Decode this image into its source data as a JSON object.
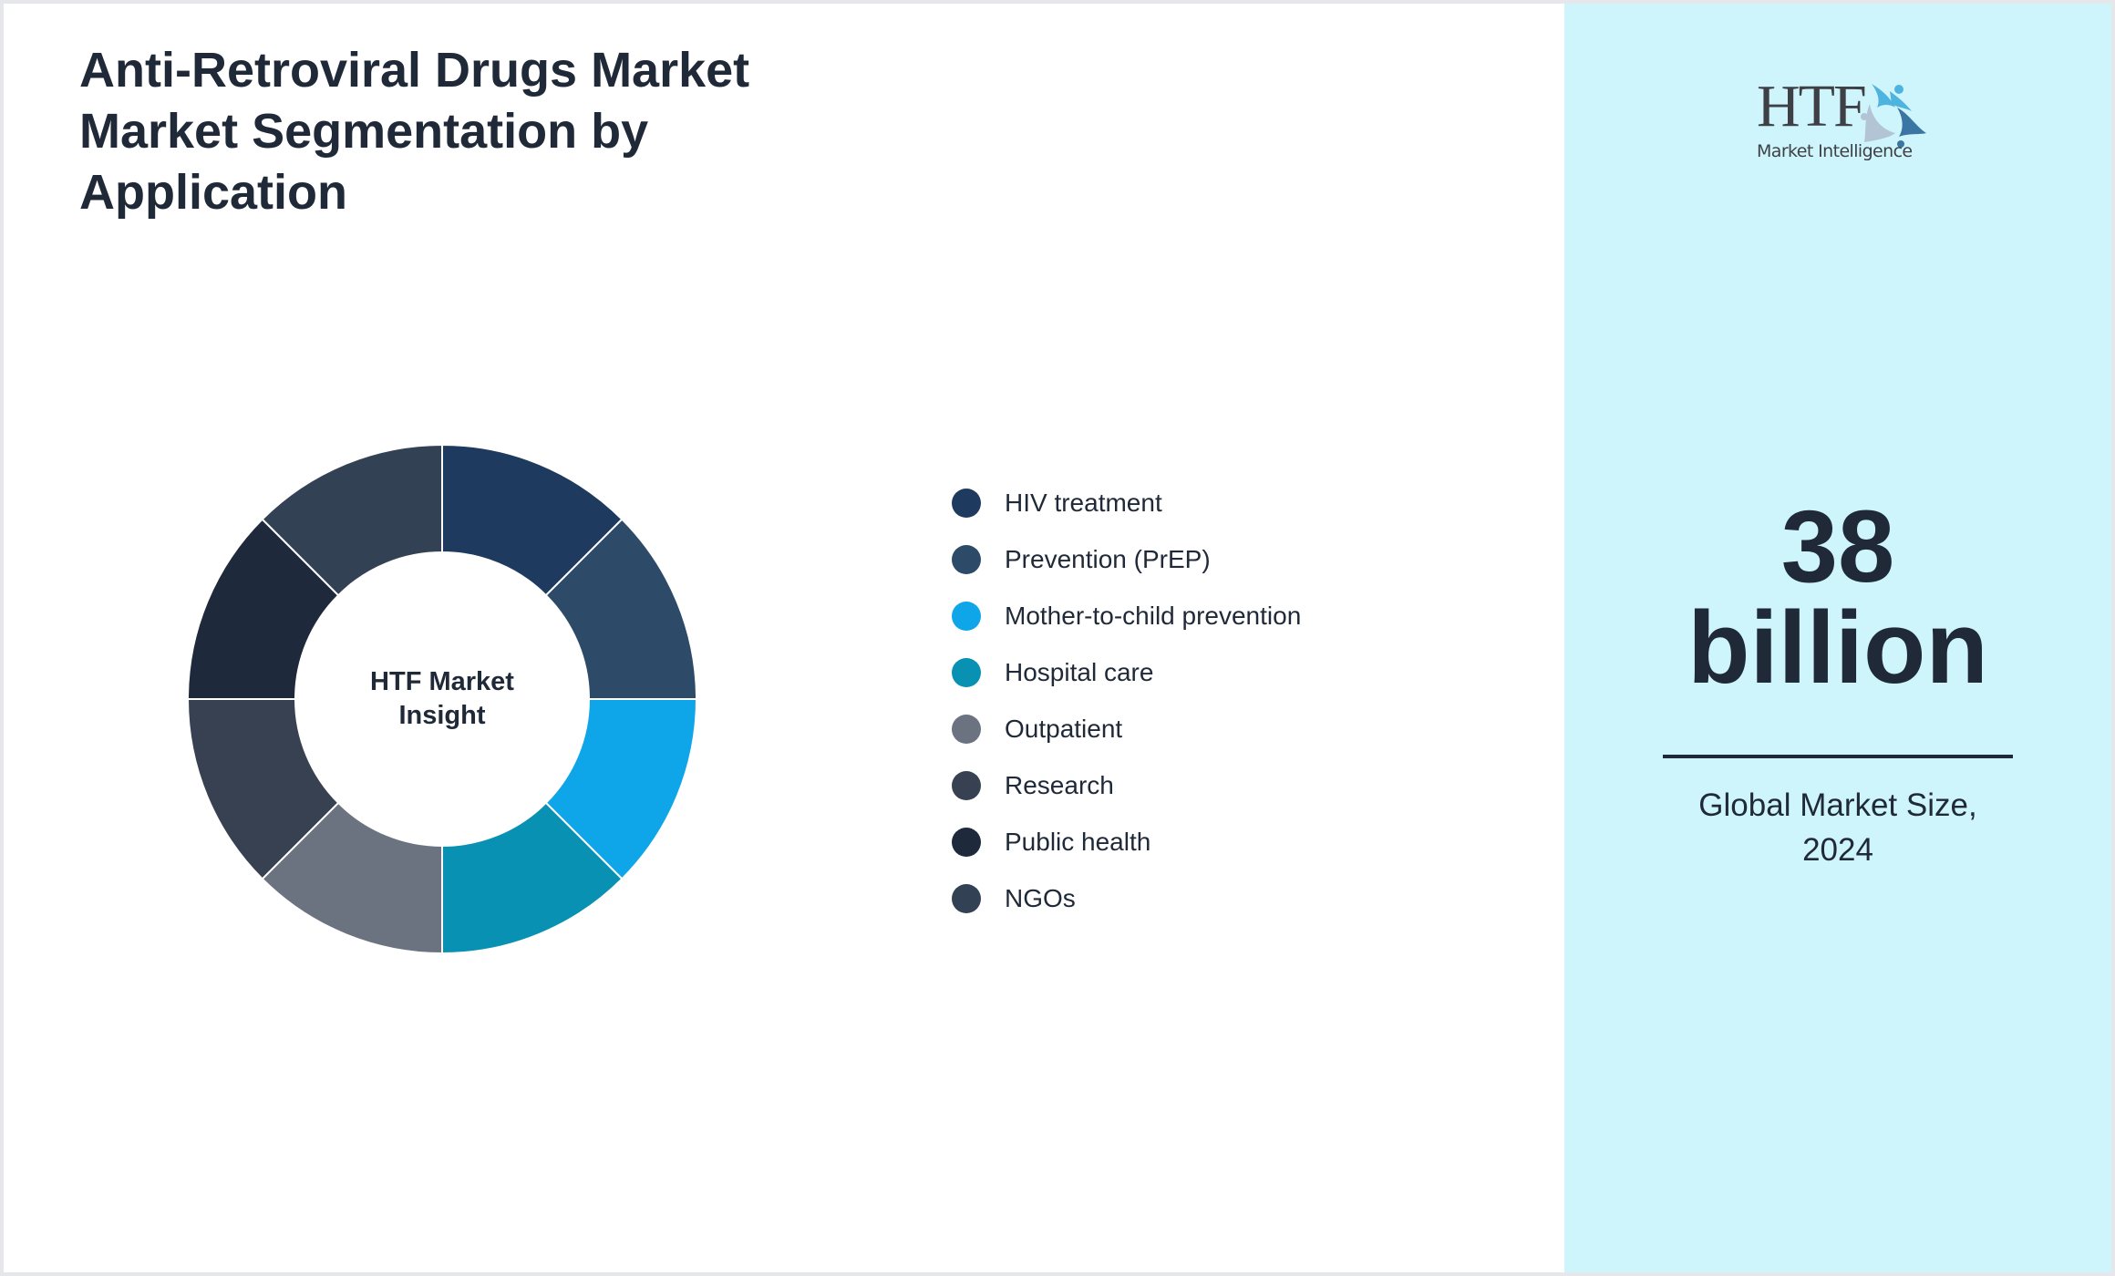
{
  "header": {
    "title_lines": [
      "Anti-Retroviral Drugs Market",
      "Market Segmentation by",
      "Application"
    ]
  },
  "donut": {
    "center_label_lines": [
      "HTF Market",
      "Insight"
    ]
  },
  "legend": {
    "items": [
      {
        "label": "HIV treatment",
        "color": "#1e3a5f"
      },
      {
        "label": "Prevention (PrEP)",
        "color": "#2d4a68"
      },
      {
        "label": "Mother-to-child prevention",
        "color": "#0ea5e9"
      },
      {
        "label": "Hospital care",
        "color": "#0891b2"
      },
      {
        "label": "Outpatient",
        "color": "#6b7280"
      },
      {
        "label": "Research",
        "color": "#374151"
      },
      {
        "label": "Public health",
        "color": "#1e293b"
      },
      {
        "label": "NGOs",
        "color": "#334155"
      }
    ]
  },
  "panel": {
    "logo": {
      "brand": "HTF",
      "tagline": "Market Intelligence"
    },
    "stat_value_lines": [
      "38",
      "billion"
    ],
    "caption_lines": [
      "Global Market Size,",
      "2024"
    ],
    "background": "#cff5fc"
  },
  "chart_data": {
    "type": "pie",
    "subtype": "donut",
    "title": "Anti-Retroviral Drugs Market Market Segmentation by Application",
    "center_label": "HTF Market Insight",
    "categories": [
      "HIV treatment",
      "Prevention (PrEP)",
      "Mother-to-child prevention",
      "Hospital care",
      "Outpatient",
      "Research",
      "Public health",
      "NGOs"
    ],
    "values": [
      12.5,
      12.5,
      12.5,
      12.5,
      12.5,
      12.5,
      12.5,
      12.5
    ],
    "colors": [
      "#1e3a5f",
      "#2d4a68",
      "#0ea5e9",
      "#0891b2",
      "#6b7280",
      "#374151",
      "#1e293b",
      "#334155"
    ],
    "legend_position": "right",
    "start_angle": "top, clockwise",
    "annotation": {
      "value": "38 billion",
      "label": "Global Market Size, 2024"
    }
  }
}
